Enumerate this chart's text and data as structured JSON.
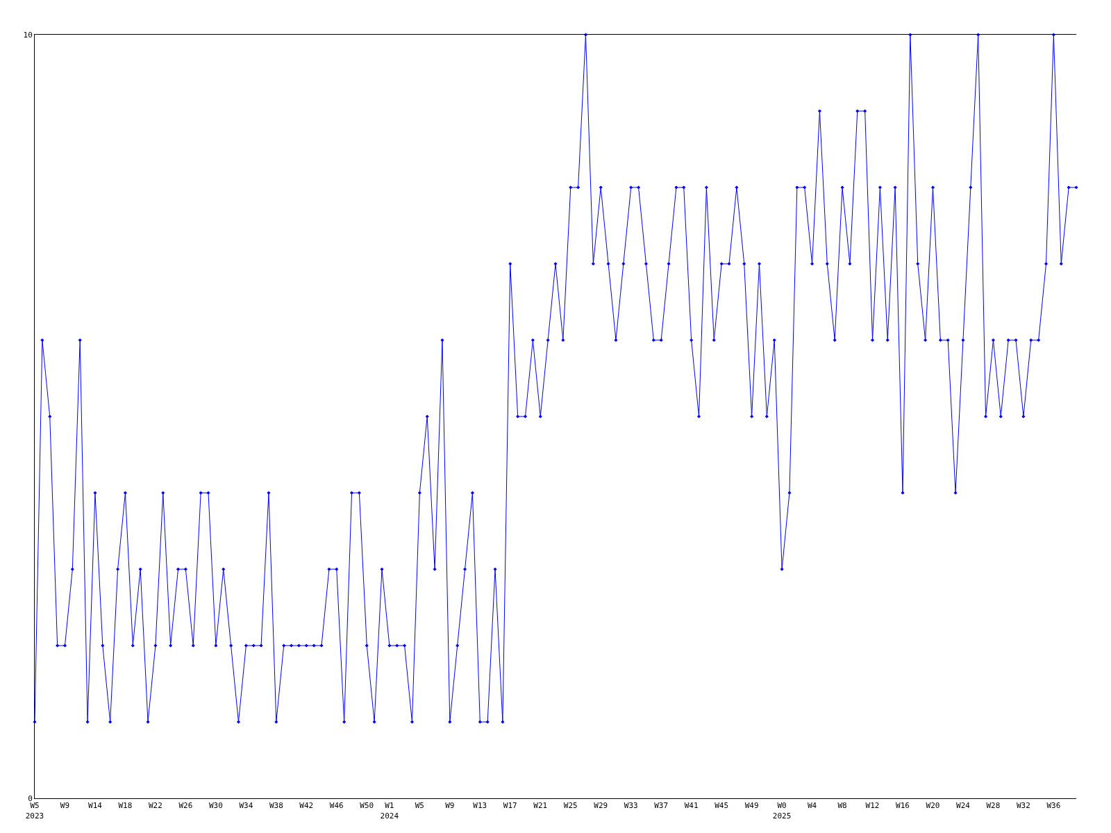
{
  "chart_data": {
    "type": "line",
    "categories": [
      "W5\n2023",
      null,
      null,
      null,
      "W9",
      null,
      null,
      null,
      "W14",
      null,
      null,
      null,
      "W18",
      null,
      null,
      null,
      "W22",
      null,
      null,
      null,
      "W26",
      null,
      null,
      null,
      "W30",
      null,
      null,
      null,
      "W34",
      null,
      null,
      null,
      "W38",
      null,
      null,
      null,
      "W42",
      null,
      null,
      null,
      "W46",
      null,
      null,
      null,
      "W50",
      null,
      null,
      "W1\n2024",
      null,
      null,
      null,
      "W5",
      null,
      null,
      null,
      "W9",
      null,
      null,
      null,
      "W13",
      null,
      null,
      null,
      "W17",
      null,
      null,
      null,
      "W21",
      null,
      null,
      null,
      "W25",
      null,
      null,
      null,
      "W29",
      null,
      null,
      null,
      "W33",
      null,
      null,
      null,
      "W37",
      null,
      null,
      null,
      "W41",
      null,
      null,
      null,
      "W45",
      null,
      null,
      null,
      "W49",
      null,
      null,
      null,
      "W0\n2025",
      null,
      null,
      null,
      "W4",
      null,
      null,
      null,
      "W8",
      null,
      null,
      null,
      "W12",
      null,
      null,
      null,
      "W16",
      null,
      null,
      null,
      "W20",
      null,
      null,
      null,
      "W24",
      null,
      null,
      null,
      "W28",
      null,
      null,
      null,
      "W32",
      null,
      null,
      null,
      "W36",
      null,
      null,
      null
    ],
    "series": [
      {
        "color": "#0000ff",
        "values": [
          1,
          6,
          5,
          2,
          2,
          3,
          6,
          1,
          4,
          2,
          1,
          3,
          4,
          2,
          3,
          1,
          2,
          4,
          2,
          3,
          3,
          2,
          4,
          4,
          2,
          3,
          2,
          1,
          2,
          2,
          2,
          4,
          1,
          2,
          2,
          2,
          2,
          2,
          2,
          3,
          3,
          1,
          4,
          4,
          2,
          1,
          3,
          2,
          2,
          2,
          1,
          4,
          5,
          3,
          6,
          1,
          2,
          3,
          4,
          1,
          1,
          3,
          1,
          7,
          5,
          5,
          6,
          5,
          6,
          7,
          6,
          8,
          8,
          10,
          7,
          8,
          7,
          6,
          7,
          8,
          8,
          7,
          6,
          6,
          7,
          8,
          8,
          6,
          5,
          8,
          6,
          7,
          7,
          8,
          7,
          5,
          7,
          5,
          6,
          3,
          4,
          8,
          8,
          7,
          9,
          7,
          6,
          8,
          7,
          9,
          9,
          6,
          8,
          6,
          8,
          4,
          10,
          7,
          6,
          8,
          6,
          6,
          4,
          6,
          8,
          10,
          5,
          6,
          5,
          6,
          6,
          5,
          6,
          6,
          7,
          10,
          7,
          8,
          8
        ]
      }
    ],
    "ylim": [
      0,
      10
    ],
    "yticks": [
      0,
      10
    ],
    "grid": false,
    "marker": "diamond",
    "line_style": "solid"
  }
}
